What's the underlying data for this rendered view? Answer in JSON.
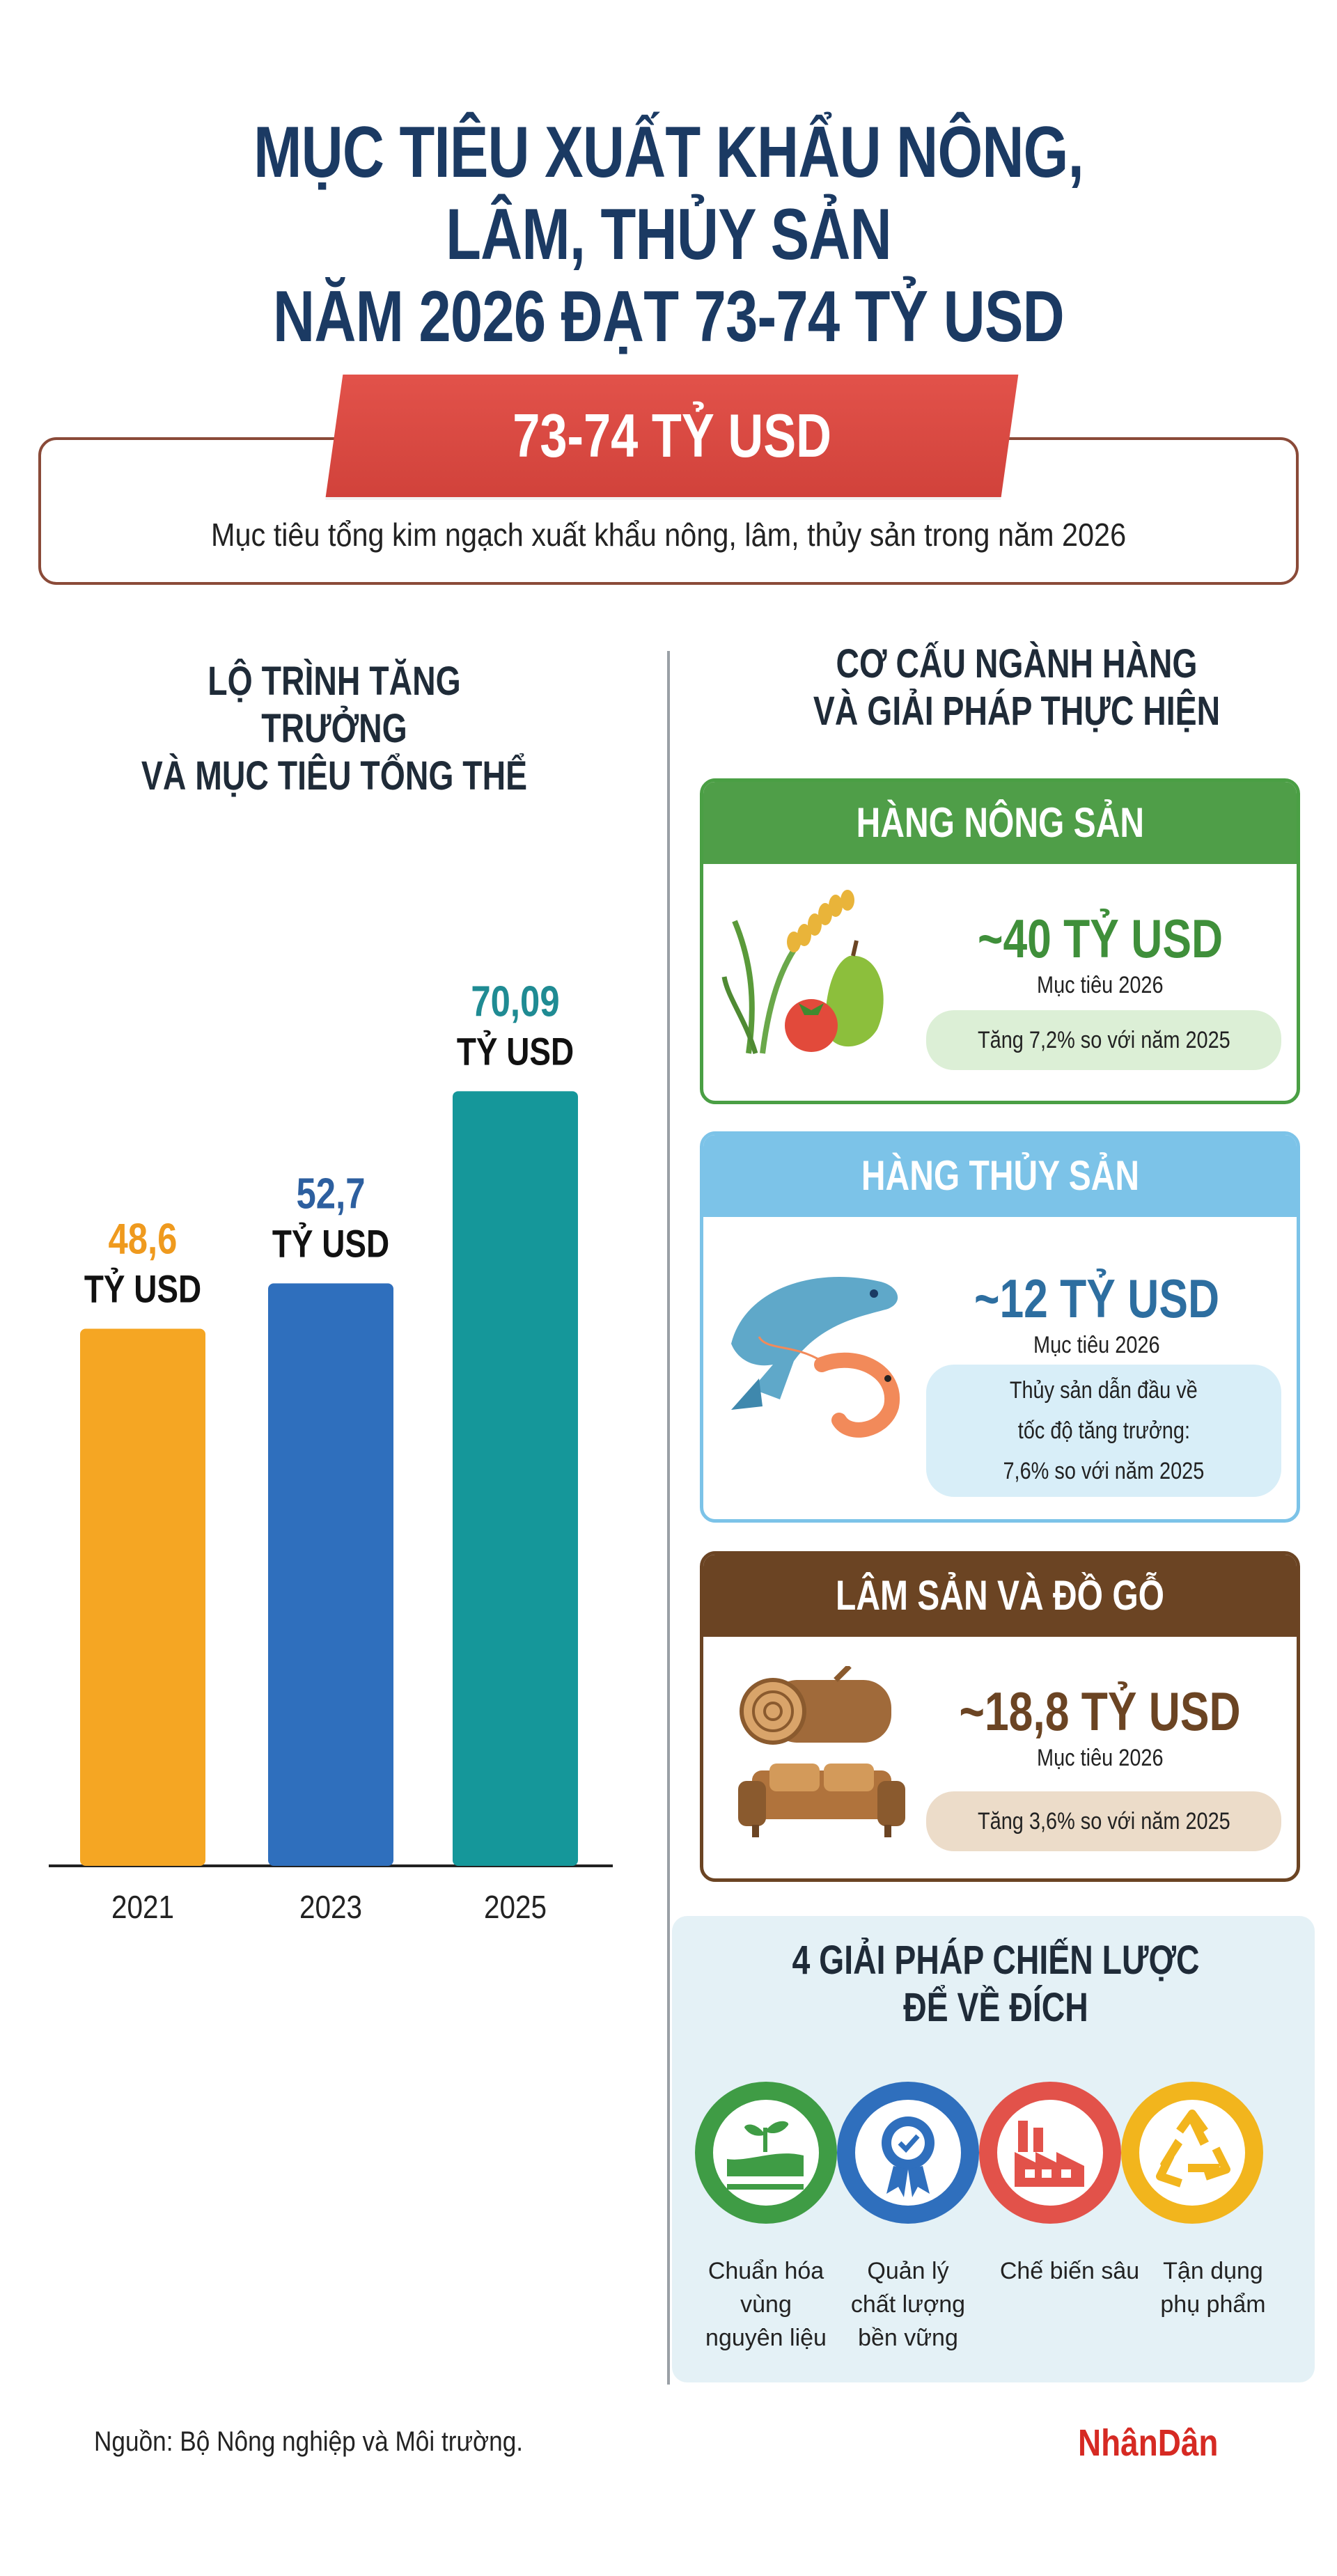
{
  "title": {
    "line1": "MỤC TIÊU XUẤT KHẨU NÔNG, LÂM, THỦY SẢN",
    "line2": "NĂM 2026 ĐẠT 73-74 TỶ USD"
  },
  "target": {
    "value": "73-74 TỶ USD",
    "description": "Mục tiêu tổng kim ngạch xuất khẩu nông, lâm, thủy sản trong năm 2026"
  },
  "left_heading": {
    "line1": "LỘ TRÌNH TĂNG TRƯỞNG",
    "line2": "VÀ MỤC TIÊU TỔNG THỂ"
  },
  "chart_data": {
    "type": "bar",
    "categories": [
      "2021",
      "2023",
      "2025"
    ],
    "values": [
      48.6,
      52.7,
      70.09
    ],
    "value_labels": [
      "48,6",
      "52,7",
      "70,09"
    ],
    "unit_label": "TỶ USD",
    "colors": [
      "#f5a623",
      "#2f6fbd",
      "#15979a"
    ],
    "label_colors": [
      "#ef9a1e",
      "#2d5f9f",
      "#1f8b93"
    ],
    "ylim": [
      0,
      80
    ],
    "grid": false
  },
  "right_heading": {
    "line1": "CƠ CẤU NGÀNH HÀNG",
    "line2": "VÀ GIẢI PHÁP THỰC HIỆN"
  },
  "sectors": [
    {
      "title": "HÀNG NÔNG SẢN",
      "value": "~40 TỶ USD",
      "sub": "Mục tiêu 2026",
      "note": "Tăng 7,2% so với năm 2025",
      "color": "#4f9e48",
      "icon": "rice-fruit-icon"
    },
    {
      "title": "HÀNG THỦY SẢN",
      "value": "~12 TỶ USD",
      "sub": "Mục tiêu 2026",
      "note_lines": [
        "Thủy sản dẫn đầu về",
        "tốc độ tăng trưởng:",
        "7,6% so với năm 2025"
      ],
      "color": "#7cc3e8",
      "icon": "fish-shrimp-icon"
    },
    {
      "title": "LÂM SẢN VÀ ĐỒ GỖ",
      "value": "~18,8 TỶ USD",
      "sub": "Mục tiêu 2026",
      "note": "Tăng 3,6% so với năm 2025",
      "color": "#6b4423",
      "icon": "log-sofa-icon"
    }
  ],
  "strategy": {
    "line1": "4 GIẢI PHÁP CHIẾN LƯỢC",
    "line2": "ĐỂ VỀ ĐÍCH",
    "solutions": [
      {
        "lines": [
          "Chuẩn hóa",
          "vùng",
          "nguyên liệu"
        ],
        "color": "#3f9c45",
        "icon": "farm-field-icon"
      },
      {
        "lines": [
          "Quản lý",
          "chất lượng",
          "bền vững"
        ],
        "color": "#2f6fbd",
        "icon": "quality-badge-icon"
      },
      {
        "lines": [
          "Chế biến sâu"
        ],
        "color": "#e2524a",
        "icon": "factory-icon"
      },
      {
        "lines": [
          "Tận dụng",
          "phụ phẩm"
        ],
        "color": "#f2b51d",
        "icon": "recycle-icon"
      }
    ]
  },
  "source": "Nguồn: Bộ Nông nghiệp và Môi trường.",
  "logo": "NhânDân"
}
